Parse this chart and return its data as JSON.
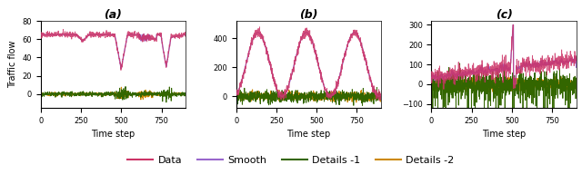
{
  "title_a": "(a)",
  "title_b": "(b)",
  "title_c": "(c)",
  "xlabel": "Time step",
  "ylabel": "Traffic flow",
  "legend_entries": [
    "Data",
    "Smooth",
    "Details -1",
    "Details -2"
  ],
  "legend_colors": [
    "#cc3366",
    "#9966cc",
    "#336600",
    "#cc8800"
  ],
  "n_points": 900,
  "background": "#ffffff",
  "title_fontsize": 9,
  "label_fontsize": 7,
  "tick_fontsize": 6,
  "legend_fontsize": 8
}
